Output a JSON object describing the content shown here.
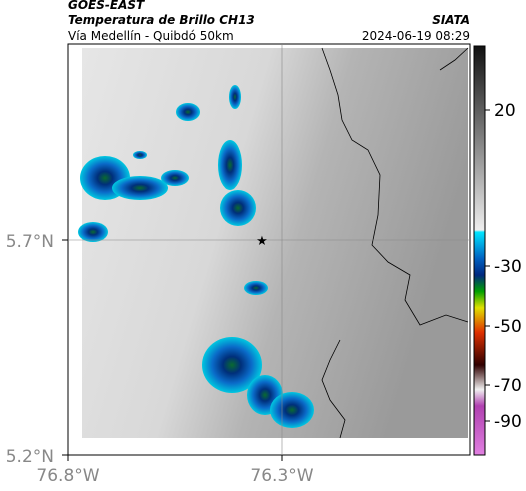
{
  "header": {
    "title": "GOES-EAST",
    "subtitle": "Temperatura de Brillo CH13",
    "route": "Vía Medellín - Quibdó 50km",
    "source": "SIATA",
    "datetime": "2024-06-19 08:29"
  },
  "map": {
    "xticks": [
      "76.8°W",
      "76.3°W"
    ],
    "yticks": [
      "5.7°N",
      "5.2°N"
    ]
  },
  "colorbar": {
    "ticks": [
      "20",
      "-30",
      "-50",
      "-70",
      "-90"
    ]
  }
}
